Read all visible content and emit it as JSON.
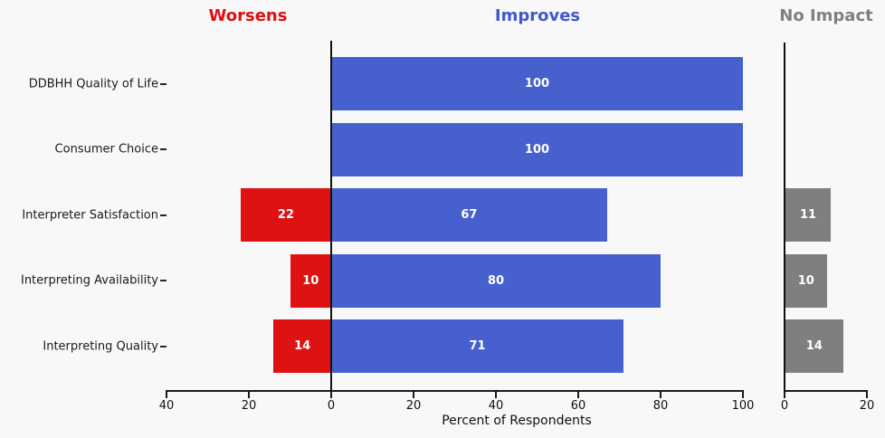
{
  "figure": {
    "background_color": "#f8f8f8",
    "xlabel": "Percent of Respondents"
  },
  "headers": {
    "worsens": {
      "label": "Worsens",
      "color": "#dd1111"
    },
    "improves": {
      "label": "Improves",
      "color": "#4059c7"
    },
    "no_impact": {
      "label": "No Impact",
      "color": "#808080"
    }
  },
  "chart_data": {
    "type": "bar",
    "orientation": "horizontal-diverging",
    "xlabel": "Percent of Respondents",
    "grid": false,
    "categories": [
      "DDBHH Quality of Life",
      "Consumer Choice",
      "Interpreter Satisfaction",
      "Interpreting Availability",
      "Interpreting Quality"
    ],
    "series": [
      {
        "name": "Worsens",
        "color": "#de1212",
        "values": [
          null,
          null,
          22,
          10,
          14
        ]
      },
      {
        "name": "Improves",
        "color": "#4660ce",
        "values": [
          100,
          100,
          67,
          80,
          71
        ]
      },
      {
        "name": "No Impact",
        "color": "#7f7f7f",
        "values": [
          null,
          null,
          11,
          10,
          14
        ]
      }
    ],
    "main_axis": {
      "range": [
        -40,
        100
      ],
      "ticks": [
        {
          "value": -40,
          "label": "40"
        },
        {
          "value": -20,
          "label": "20"
        },
        {
          "value": 0,
          "label": "0"
        },
        {
          "value": 20,
          "label": "20"
        },
        {
          "value": 40,
          "label": "40"
        },
        {
          "value": 60,
          "label": "60"
        },
        {
          "value": 80,
          "label": "80"
        },
        {
          "value": 100,
          "label": "100"
        }
      ]
    },
    "no_impact_axis": {
      "range": [
        0,
        20
      ],
      "ticks": [
        {
          "value": 0,
          "label": "0"
        },
        {
          "value": 20,
          "label": "20"
        }
      ]
    }
  }
}
